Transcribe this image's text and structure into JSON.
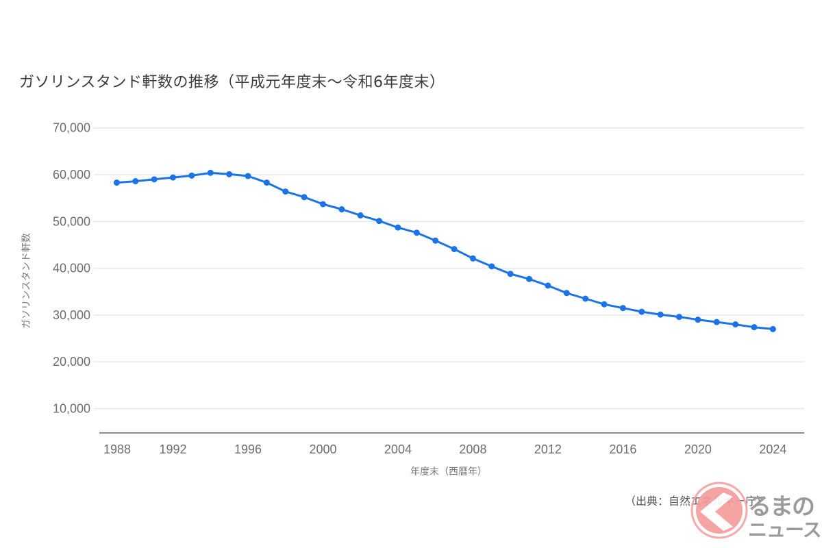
{
  "title": "ガソリンスタンド軒数の推移（平成元年度末～令和6年度末）",
  "source_note": "（出典：自然エネルギー庁）",
  "watermark": {
    "line1": "るまの",
    "line2": "ニュース",
    "icon": "kuruma-news-chevron-logo",
    "colors": {
      "circle": "#f59a9a",
      "ring": "#f4a0a0",
      "text": "#9a9a9a"
    }
  },
  "colors": {
    "line": "#1a73e8",
    "grid": "#e6e6e6",
    "axis": "#8c8c8c",
    "tick_text": "#6e6e6e",
    "title": "#3c3c3c"
  },
  "chart_data": {
    "type": "line",
    "title": "ガソリンスタンド軒数の推移（平成元年度末～令和6年度末）",
    "xlabel": "年度末（西暦年）",
    "ylabel": "ガソリンスタンド軒数",
    "x_ticks": [
      "1988",
      "1992",
      "1996",
      "2000",
      "2004",
      "2008",
      "2012",
      "2016",
      "2020",
      "2024"
    ],
    "y_ticks": [
      "10,000",
      "20,000",
      "30,000",
      "40,000",
      "50,000",
      "60,000",
      "70,000"
    ],
    "ylim": [
      4400,
      70000
    ],
    "grid": true,
    "legend": null,
    "series": [
      {
        "name": "ガソリンスタンド軒数",
        "x": [
          1989,
          1990,
          1991,
          1992,
          1993,
          1994,
          1995,
          1996,
          1997,
          1998,
          1999,
          2000,
          2001,
          2002,
          2003,
          2004,
          2005,
          2006,
          2007,
          2008,
          2009,
          2010,
          2011,
          2012,
          2013,
          2014,
          2015,
          2016,
          2017,
          2018,
          2019,
          2020,
          2021,
          2022,
          2023,
          2024
        ],
        "values": [
          58300,
          58600,
          59000,
          59400,
          59800,
          60400,
          60100,
          59700,
          58300,
          56400,
          55200,
          53700,
          52600,
          51300,
          50100,
          48700,
          47600,
          45900,
          44100,
          42100,
          40400,
          38800,
          37700,
          36300,
          34700,
          33500,
          32300,
          31500,
          30700,
          30100,
          29600,
          29000,
          28500,
          28000,
          27400,
          27000
        ]
      }
    ]
  }
}
